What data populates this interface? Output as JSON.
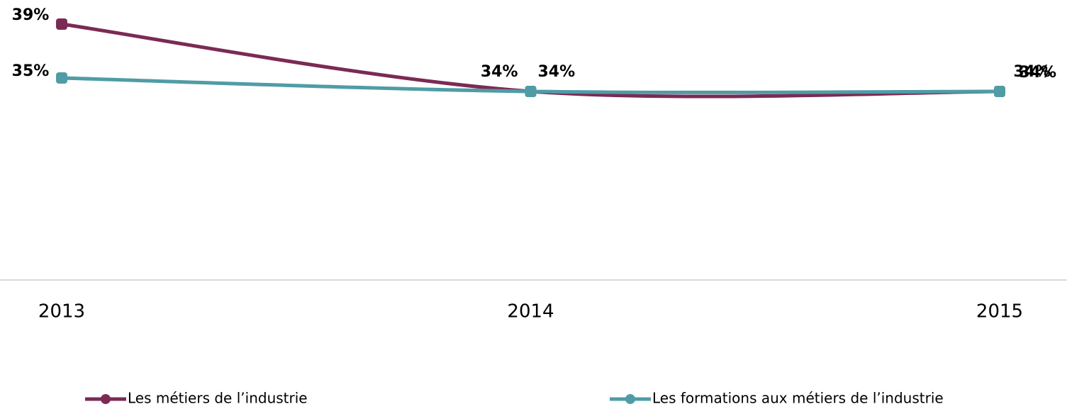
{
  "chart_data": {
    "type": "line",
    "categories": [
      "2013",
      "2014",
      "2015"
    ],
    "ylim": [
      20,
      40
    ],
    "series": [
      {
        "name": "Les métiers de l’industrie",
        "color": "#7b2a55",
        "values": [
          39,
          34,
          34
        ],
        "value_labels": [
          "39%",
          "34%",
          "34%"
        ]
      },
      {
        "name": "Les formations aux métiers de l’industrie",
        "color": "#4f9ca6",
        "values": [
          35,
          34,
          34
        ],
        "value_labels": [
          "35%",
          "34%",
          "34%"
        ]
      }
    ]
  }
}
